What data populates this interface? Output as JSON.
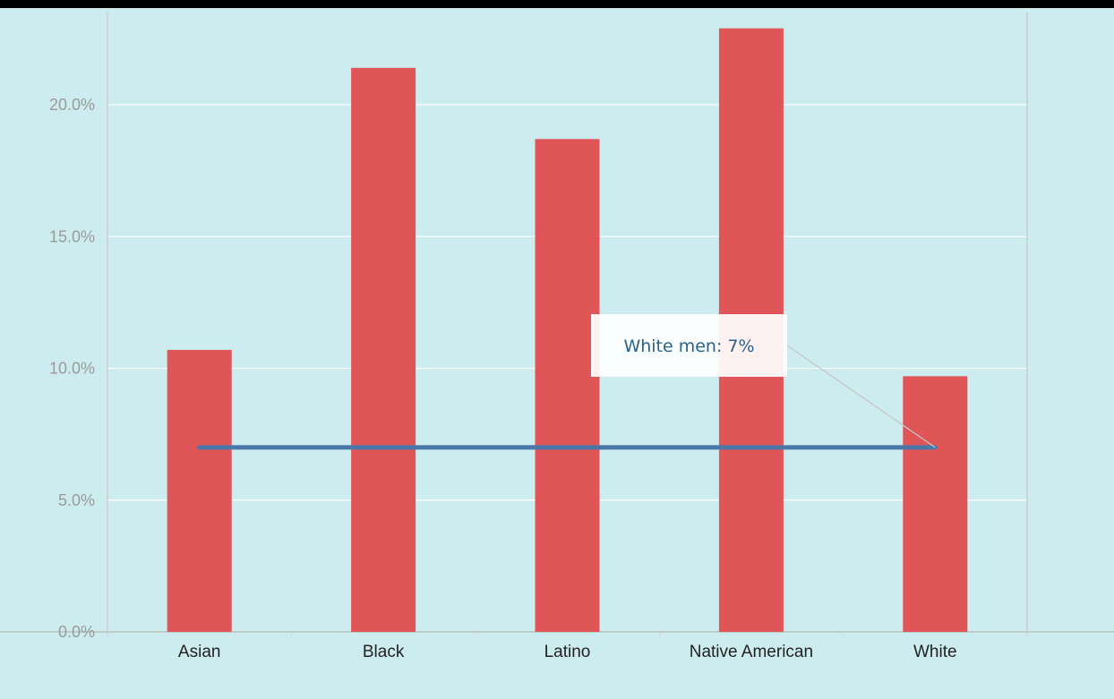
{
  "chart_data": {
    "type": "bar",
    "categories": [
      "Asian",
      "Black",
      "Latino",
      "Native American",
      "White"
    ],
    "values": [
      10.7,
      21.4,
      18.7,
      22.9,
      9.7
    ],
    "reference_line": {
      "value": 7.0,
      "label": "White men: 7%"
    },
    "title": "",
    "xlabel": "",
    "ylabel": "",
    "ylim": [
      0,
      23.5
    ],
    "yticks": [
      "0.0%",
      "5.0%",
      "10.0%",
      "15.0%",
      "20.0%"
    ],
    "ytick_values": [
      0,
      5,
      10,
      15,
      20
    ],
    "grid": true,
    "colors": {
      "bar": "#e05558",
      "reference_line": "#4a77a8",
      "background": "#cdecef",
      "gridline": "#ffffff",
      "annotation_bg": "#ffffff",
      "annotation_text": "#2a5f8a"
    }
  }
}
